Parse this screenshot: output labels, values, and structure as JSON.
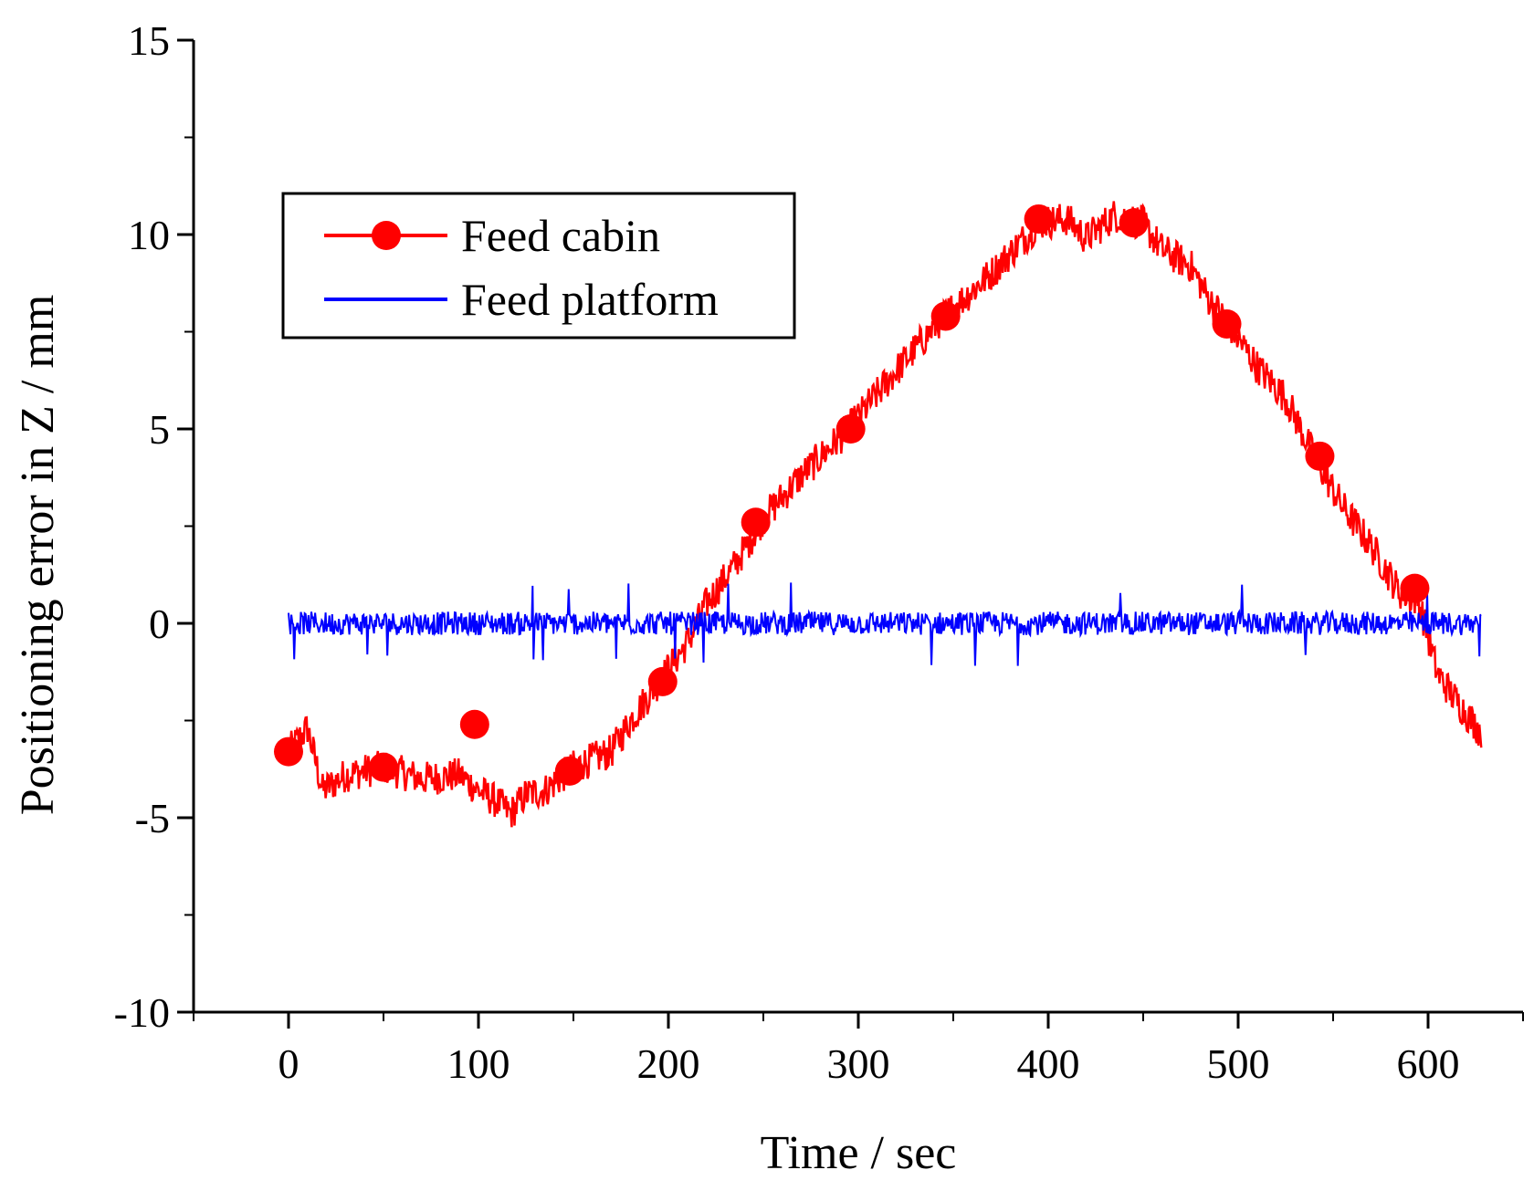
{
  "chart_data": {
    "type": "line",
    "title": "",
    "xlabel": "Time / sec",
    "ylabel": "Positioning error in Z / mm",
    "xlim": [
      -50,
      650
    ],
    "ylim": [
      -10,
      15
    ],
    "xticks": [
      0,
      100,
      200,
      300,
      400,
      500,
      600
    ],
    "yticks": [
      -10,
      -5,
      0,
      5,
      10,
      15
    ],
    "xtick_labels": [
      "0",
      "100",
      "200",
      "300",
      "400",
      "500",
      "600"
    ],
    "ytick_labels": [
      "-10",
      "-5",
      "0",
      "5",
      "10",
      "15"
    ],
    "legend": {
      "position": "upper-left",
      "entries": [
        "Feed cabin",
        "Feed platform"
      ]
    },
    "series": [
      {
        "name": "Feed cabin",
        "color": "#ff0000",
        "marker": "circle",
        "x": [
          0,
          5,
          10,
          18,
          30,
          50,
          70,
          90,
          100,
          110,
          117,
          125,
          135,
          150,
          170,
          180,
          195,
          210,
          220,
          235,
          250,
          270,
          295,
          320,
          345,
          370,
          395,
          410,
          420,
          435,
          450,
          460,
          475,
          485,
          495,
          510,
          525,
          540,
          555,
          570,
          585,
          595,
          605,
          615,
          628
        ],
        "y": [
          -3.3,
          -3.0,
          -2.7,
          -4.3,
          -3.9,
          -3.7,
          -4.0,
          -3.9,
          -4.3,
          -4.6,
          -4.9,
          -4.4,
          -4.3,
          -3.7,
          -3.3,
          -2.5,
          -1.5,
          -0.5,
          0.5,
          1.5,
          2.7,
          3.8,
          5.0,
          6.5,
          7.9,
          9.0,
          10.3,
          10.4,
          9.9,
          10.5,
          10.3,
          9.6,
          9.2,
          8.3,
          7.7,
          6.6,
          5.8,
          4.3,
          3.0,
          2.0,
          0.8,
          0.6,
          -1.3,
          -2.0,
          -2.8
        ],
        "markers_x": [
          0,
          50,
          98,
          148,
          197,
          246,
          296,
          346,
          395,
          445,
          494,
          543,
          593
        ],
        "markers_y": [
          -3.3,
          -3.7,
          -2.6,
          -3.8,
          -1.5,
          2.6,
          5.0,
          7.9,
          10.4,
          10.3,
          7.7,
          4.3,
          0.9
        ]
      },
      {
        "name": "Feed platform",
        "color": "#0000ff",
        "marker": "none",
        "x": [
          0,
          100,
          200,
          300,
          400,
          500,
          600,
          628
        ],
        "y": [
          0.0,
          0.0,
          0.0,
          0.0,
          0.0,
          0.0,
          0.0,
          0.0
        ],
        "noise_amplitude": 0.5,
        "spike_amplitude": 1.1
      }
    ]
  }
}
